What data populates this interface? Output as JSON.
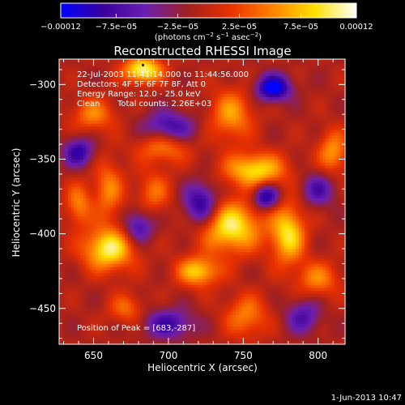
{
  "chart_data": {
    "type": "heatmap",
    "title": "Reconstructed RHESSI Image",
    "xlabel": "Heliocentric X (arcsec)",
    "ylabel": "Heliocentric Y (arcsec)",
    "xlim": [
      627,
      818
    ],
    "ylim": [
      -474,
      -283
    ],
    "x_ticks": [
      650,
      700,
      750,
      800
    ],
    "x_tick_labels": [
      "650",
      "700",
      "750",
      "800"
    ],
    "y_ticks": [
      -300,
      -350,
      -400,
      -450
    ],
    "y_tick_labels": [
      "−300",
      "−350",
      "−400",
      "−450"
    ],
    "colorbar": {
      "range": [
        -0.00012,
        0.00012
      ],
      "ticks": [
        -0.00012,
        -7.5e-05,
        -2.5e-05,
        2.5e-05,
        7.5e-05,
        0.00012
      ],
      "tick_labels": [
        "−0.00012",
        "−7.5e−05",
        "−2.5e−05",
        "2.5e−05",
        "7.5e−05",
        "0.00012"
      ],
      "colors": [
        "#0000ff",
        "#3a009c",
        "#6a1fb0",
        "#a02020",
        "#e83000",
        "#ff8000",
        "#ffe000",
        "#ffffff"
      ],
      "unit_label_parts": {
        "pre": "(photons cm",
        "sup1": "−2",
        "mid": " s",
        "sup2": "−1",
        "mid2": " asec",
        "sup3": "−2",
        "post": ")"
      }
    },
    "annotations": {
      "time": "22-Jul-2003 11:41:14.000 to 11:44:56.000",
      "detectors": "Detectors: 4F 5F 6F 7F 8F, Att 0",
      "energy": "Energy Range: 12.0 - 25.0 keV",
      "clean": "Clean",
      "counts": "Total counts: 2.26E+03",
      "peak": "Position of Peak = [683,-287]"
    },
    "peak": {
      "x": 683,
      "y": -287
    },
    "sources": [
      {
        "x": 683,
        "y": -290,
        "amp": 0.00012,
        "sx": 9,
        "sy": 6
      },
      {
        "x": 650,
        "y": -320,
        "amp": 6e-05,
        "sx": 10,
        "sy": 8
      },
      {
        "x": 697,
        "y": -340,
        "amp": 8e-05,
        "sx": 12,
        "sy": 8
      },
      {
        "x": 742,
        "y": -320,
        "amp": 7e-05,
        "sx": 10,
        "sy": 12
      },
      {
        "x": 690,
        "y": -372,
        "amp": 5e-05,
        "sx": 8,
        "sy": 10
      },
      {
        "x": 660,
        "y": -370,
        "amp": 6e-05,
        "sx": 7,
        "sy": 14
      },
      {
        "x": 758,
        "y": -357,
        "amp": 0.0001,
        "sx": 14,
        "sy": 8
      },
      {
        "x": 742,
        "y": -395,
        "amp": 0.00011,
        "sx": 14,
        "sy": 12
      },
      {
        "x": 780,
        "y": -400,
        "amp": 0.0001,
        "sx": 8,
        "sy": 14
      },
      {
        "x": 810,
        "y": -345,
        "amp": 7e-05,
        "sx": 7,
        "sy": 10
      },
      {
        "x": 660,
        "y": -410,
        "amp": 0.00011,
        "sx": 12,
        "sy": 10
      },
      {
        "x": 640,
        "y": -380,
        "amp": 6e-05,
        "sx": 6,
        "sy": 10
      },
      {
        "x": 720,
        "y": -425,
        "amp": 9e-05,
        "sx": 10,
        "sy": 7
      },
      {
        "x": 800,
        "y": -430,
        "amp": 6e-05,
        "sx": 10,
        "sy": 8
      },
      {
        "x": 752,
        "y": -455,
        "amp": 6e-05,
        "sx": 10,
        "sy": 10
      },
      {
        "x": 672,
        "y": -450,
        "amp": 5e-05,
        "sx": 8,
        "sy": 7
      },
      {
        "x": 700,
        "y": -330,
        "amp": -9e-05,
        "sx": 12,
        "sy": 8
      },
      {
        "x": 770,
        "y": -302,
        "amp": -0.00012,
        "sx": 8,
        "sy": 6
      },
      {
        "x": 640,
        "y": -345,
        "amp": -8e-05,
        "sx": 7,
        "sy": 7
      },
      {
        "x": 722,
        "y": -380,
        "amp": -9e-05,
        "sx": 8,
        "sy": 10
      },
      {
        "x": 765,
        "y": -375,
        "amp": -0.0001,
        "sx": 6,
        "sy": 6
      },
      {
        "x": 680,
        "y": -395,
        "amp": -7e-05,
        "sx": 7,
        "sy": 8
      },
      {
        "x": 700,
        "y": -460,
        "amp": -7e-05,
        "sx": 12,
        "sy": 7
      },
      {
        "x": 800,
        "y": -370,
        "amp": -6e-05,
        "sx": 8,
        "sy": 8
      },
      {
        "x": 790,
        "y": -455,
        "amp": -6e-05,
        "sx": 8,
        "sy": 8
      }
    ]
  },
  "footer": {
    "timestamp": "1-Jun-2013 10:47"
  }
}
